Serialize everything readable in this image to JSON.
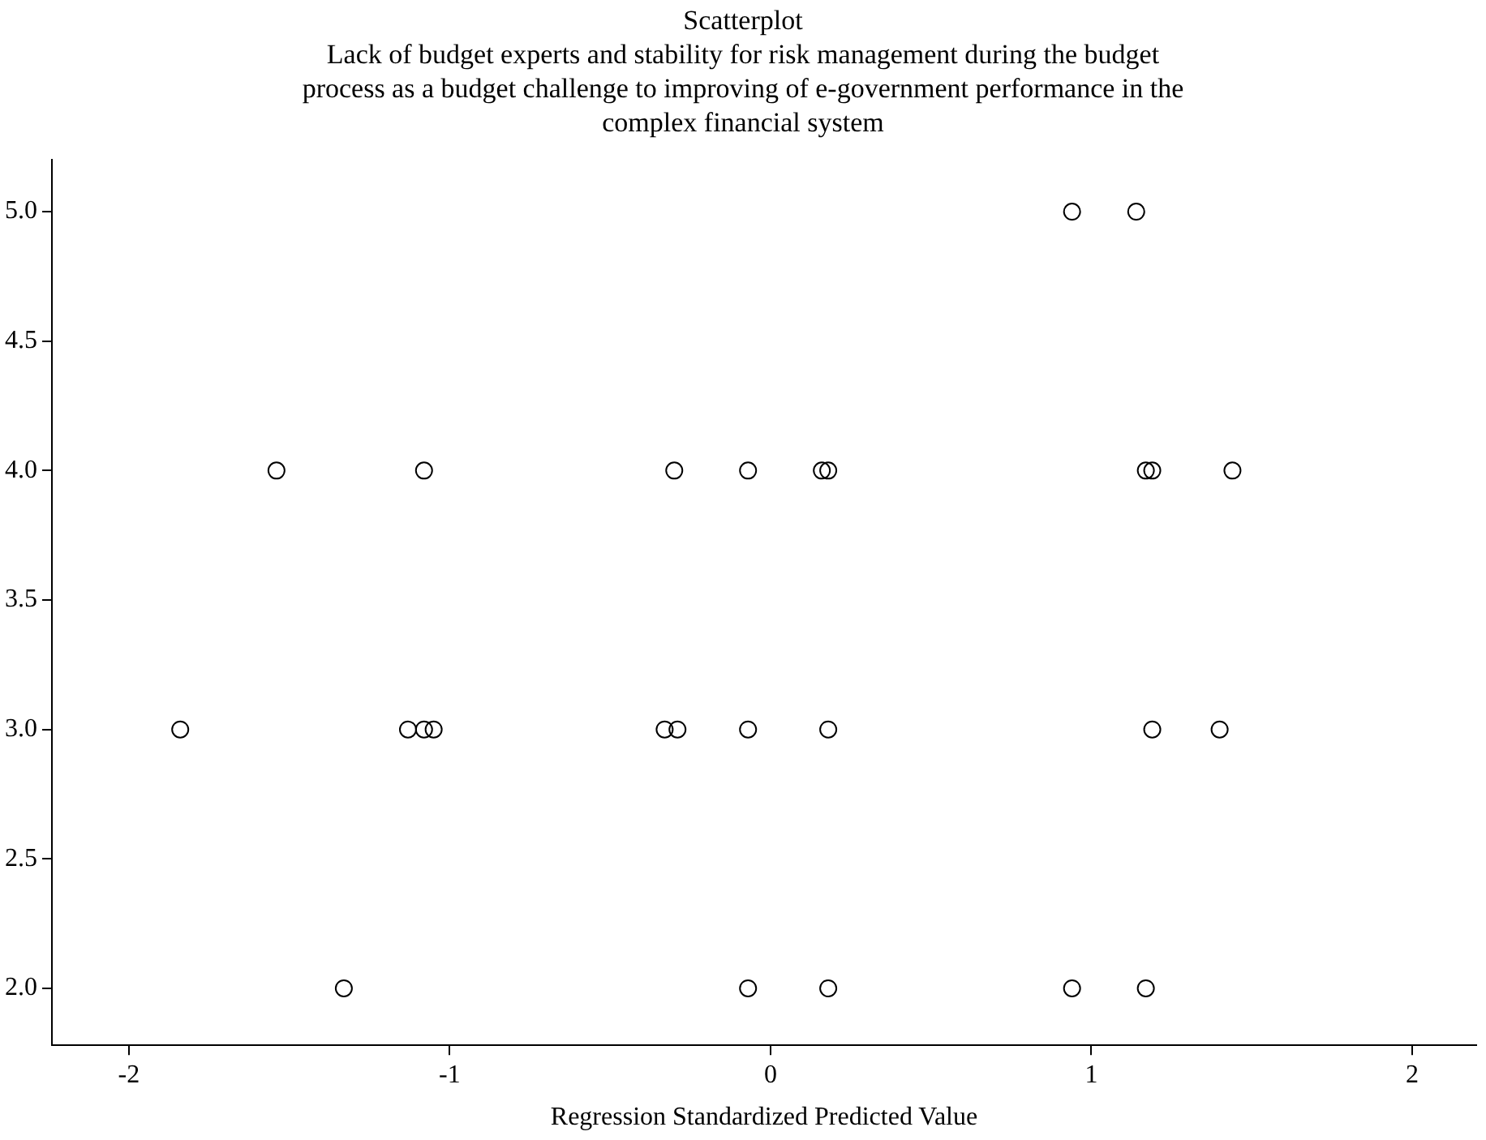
{
  "chart_data": {
    "type": "scatter",
    "title": "Scatterplot",
    "subtitle": "Lack of budget experts and stability for risk management during the budget process as a budget challenge to improving of e-government performance in the complex financial system",
    "xlabel": "Regression Standardized Predicted Value",
    "marker": "circle",
    "grid": false,
    "legend": false,
    "xlim": [
      -2.24,
      2.2
    ],
    "xticks": [
      -2,
      -1,
      0,
      1,
      2
    ],
    "ylim": [
      1.78,
      5.2
    ],
    "yticks": [
      {
        "value": 2,
        "label": "2.0"
      },
      {
        "value": 2.5,
        "label": "2.5"
      },
      {
        "value": 3,
        "label": "3.0"
      },
      {
        "value": 3.5,
        "label": "3.5"
      },
      {
        "value": 4,
        "label": "4.0"
      },
      {
        "value": 4.5,
        "label": "4.5"
      },
      {
        "value": 5,
        "label": "5.0"
      }
    ],
    "series": [
      {
        "color": "#000000",
        "x": [
          0.94,
          1.14,
          -1.54,
          -1.08,
          -0.3,
          -0.07,
          0.16,
          0.18,
          1.17,
          1.19,
          1.44,
          -1.84,
          -1.13,
          -1.08,
          -1.05,
          -0.33,
          -0.29,
          -0.07,
          0.18,
          1.19,
          1.4,
          -1.33,
          -0.07,
          0.18,
          0.94,
          1.17
        ],
        "values": [
          5,
          5,
          4,
          4,
          4,
          4,
          4,
          4,
          4,
          4,
          4,
          3,
          3,
          3,
          3,
          3,
          3,
          3,
          3,
          3,
          3,
          2,
          2,
          2,
          2,
          2
        ]
      }
    ]
  }
}
